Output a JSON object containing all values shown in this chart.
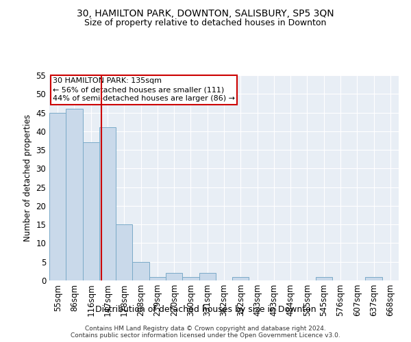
{
  "title1": "30, HAMILTON PARK, DOWNTON, SALISBURY, SP5 3QN",
  "title2": "Size of property relative to detached houses in Downton",
  "xlabel": "Distribution of detached houses by size in Downton",
  "ylabel": "Number of detached properties",
  "footnote": "Contains HM Land Registry data © Crown copyright and database right 2024.\nContains public sector information licensed under the Open Government Licence v3.0.",
  "bin_labels": [
    "55sqm",
    "86sqm",
    "116sqm",
    "147sqm",
    "178sqm",
    "208sqm",
    "239sqm",
    "270sqm",
    "300sqm",
    "331sqm",
    "362sqm",
    "392sqm",
    "423sqm",
    "453sqm",
    "484sqm",
    "515sqm",
    "545sqm",
    "576sqm",
    "607sqm",
    "637sqm",
    "668sqm"
  ],
  "bar_values": [
    45,
    46,
    37,
    41,
    15,
    5,
    1,
    2,
    1,
    2,
    0,
    1,
    0,
    0,
    0,
    0,
    1,
    0,
    0,
    1,
    0
  ],
  "bar_color": "#c9d9ea",
  "bar_edge_color": "#7aaac8",
  "vline_x": 2.63,
  "vline_color": "#cc0000",
  "annotation_text": "30 HAMILTON PARK: 135sqm\n← 56% of detached houses are smaller (111)\n44% of semi-detached houses are larger (86) →",
  "annotation_box_color": "#ffffff",
  "annotation_box_edge": "#cc0000",
  "ylim": [
    0,
    55
  ],
  "yticks": [
    0,
    5,
    10,
    15,
    20,
    25,
    30,
    35,
    40,
    45,
    50,
    55
  ],
  "plot_bg": "#e8eef5",
  "title1_fontsize": 10,
  "title2_fontsize": 9
}
